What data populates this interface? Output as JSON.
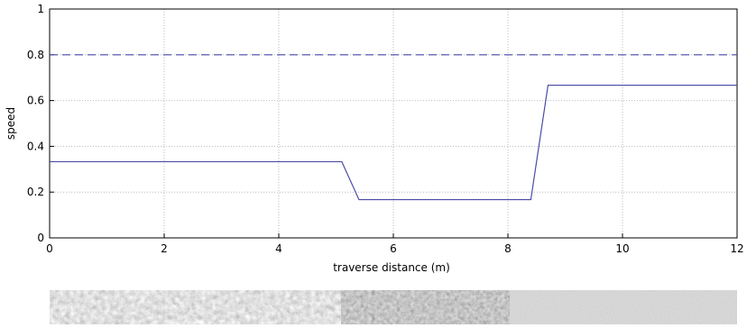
{
  "chart_data": {
    "type": "line",
    "xlabel": "traverse distance (m)",
    "ylabel": "speed",
    "xlim": [
      0,
      12
    ],
    "ylim": [
      0,
      1
    ],
    "xticks": [
      0,
      2,
      4,
      6,
      8,
      10,
      12
    ],
    "yticks": [
      0,
      0.2,
      0.4,
      0.6,
      0.8,
      1
    ],
    "grid": true,
    "series": [
      {
        "color": "#4a4aa8",
        "style": "solid",
        "x": [
          0,
          5.1,
          5.4,
          8.4,
          8.7,
          12
        ],
        "values": [
          0.333,
          0.333,
          0.167,
          0.167,
          0.667,
          0.667
        ]
      },
      {
        "color": "#4a4aa8",
        "style": "dashed",
        "x": [
          0,
          12
        ],
        "values": [
          0.8,
          0.8
        ]
      }
    ]
  }
}
